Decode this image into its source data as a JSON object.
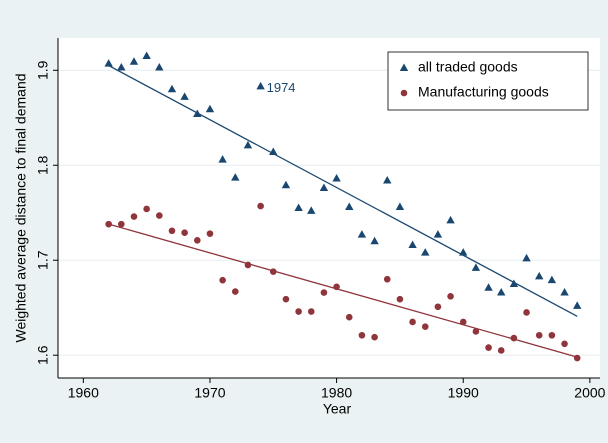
{
  "chart_data": {
    "type": "scatter",
    "x_label": "Year",
    "y_label": "Weighted average distance to final demand",
    "x": [
      1962,
      1963,
      1964,
      1965,
      1966,
      1967,
      1968,
      1969,
      1970,
      1971,
      1972,
      1973,
      1974,
      1975,
      1976,
      1977,
      1978,
      1979,
      1980,
      1981,
      1982,
      1983,
      1984,
      1985,
      1986,
      1987,
      1988,
      1989,
      1990,
      1991,
      1992,
      1993,
      1994,
      1995,
      1996,
      1997,
      1998,
      1999
    ],
    "series": [
      {
        "name": "all traded goods",
        "color": "#1a476f",
        "marker": "triangle",
        "values": [
          1.907,
          1.903,
          1.909,
          1.915,
          1.903,
          1.88,
          1.872,
          1.854,
          1.859,
          1.806,
          1.787,
          1.821,
          1.883,
          1.814,
          1.779,
          1.755,
          1.752,
          1.776,
          1.786,
          1.756,
          1.727,
          1.72,
          1.784,
          1.756,
          1.716,
          1.708,
          1.727,
          1.742,
          1.708,
          1.692,
          1.671,
          1.666,
          1.675,
          1.702,
          1.683,
          1.679,
          1.666,
          1.652
        ],
        "fit": {
          "x": [
            1962,
            1999
          ],
          "values": [
            1.905,
            1.641
          ]
        }
      },
      {
        "name": "Manufacturing goods",
        "color": "#90353b",
        "marker": "circle",
        "values": [
          1.738,
          1.738,
          1.746,
          1.754,
          1.747,
          1.731,
          1.729,
          1.721,
          1.728,
          1.679,
          1.667,
          1.695,
          1.757,
          1.688,
          1.659,
          1.646,
          1.646,
          1.666,
          1.672,
          1.64,
          1.621,
          1.619,
          1.68,
          1.659,
          1.635,
          1.63,
          1.651,
          1.662,
          1.635,
          1.625,
          1.608,
          1.605,
          1.618,
          1.645,
          1.621,
          1.621,
          1.612,
          1.597
        ],
        "fit": {
          "x": [
            1962,
            1999
          ],
          "values": [
            1.738,
            1.598
          ]
        }
      }
    ],
    "annotation": "1974",
    "xlim": [
      1958,
      2000.8
    ],
    "ylim": [
      1.576,
      1.934
    ],
    "xticks": [
      1960,
      1970,
      1980,
      1990,
      2000
    ],
    "yticks": [
      1.6,
      1.7,
      1.8,
      1.9
    ],
    "grid": true,
    "legend_position": "top-right"
  }
}
